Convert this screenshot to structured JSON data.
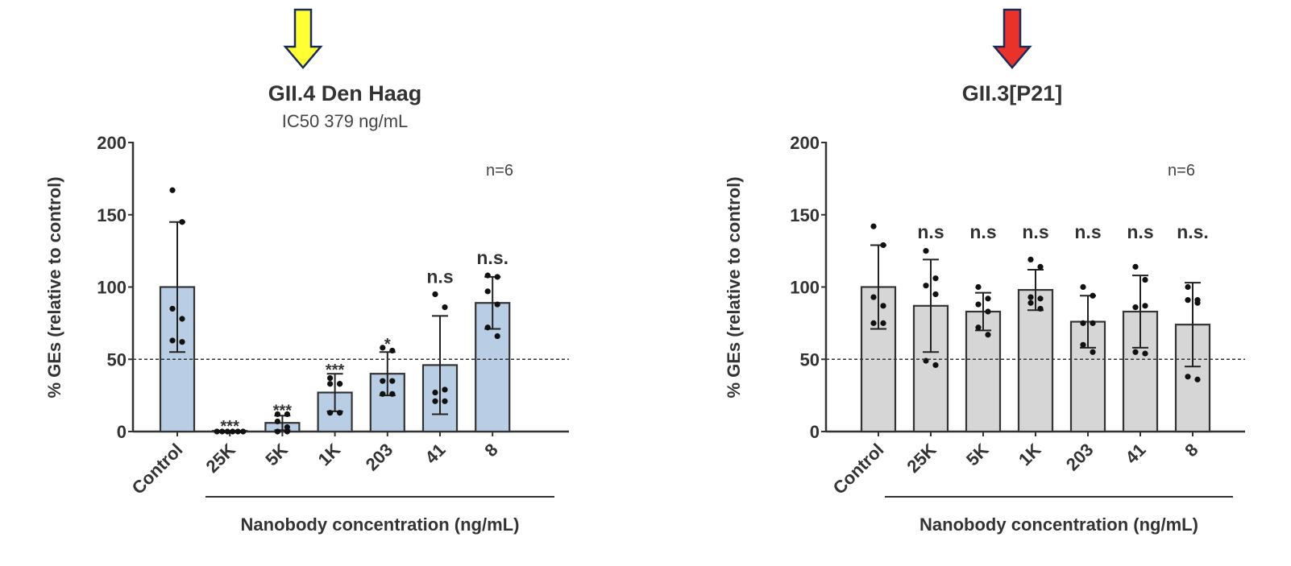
{
  "chart_data": [
    {
      "type": "bar",
      "title": "GII.4 Den Haag",
      "subtitle": "IC50  379 ng/mL",
      "arrow_color": "#ffff33",
      "bar_color": "#b9cde4",
      "ylabel": "% GEs (relative to control)",
      "xlabel": "Nanobody concentration (ng/mL)",
      "ylim": [
        0,
        200
      ],
      "yticks": [
        "0",
        "50",
        "100",
        "150",
        "200"
      ],
      "reference_line": 50,
      "annotation": "n=6",
      "categories": [
        "Control",
        "25K",
        "5K",
        "1K",
        "203",
        "41",
        "8"
      ],
      "values": [
        100,
        0.5,
        6,
        27,
        40,
        46,
        89
      ],
      "sd": [
        45,
        0.5,
        5,
        13,
        15,
        34,
        18
      ],
      "significance": [
        "",
        "***",
        "***",
        "***",
        "*",
        "n.s",
        "n.s."
      ],
      "points": [
        [
          167,
          145,
          85,
          78,
          63,
          62
        ],
        [
          0,
          0,
          0,
          0,
          0,
          0
        ],
        [
          12,
          12,
          7,
          3,
          0,
          0
        ],
        [
          37,
          33,
          33,
          33,
          13,
          13
        ],
        [
          58,
          56,
          35,
          35,
          26,
          26
        ],
        [
          95,
          86,
          27,
          29,
          21,
          21
        ],
        [
          108,
          107,
          97,
          88,
          72,
          66
        ]
      ]
    },
    {
      "type": "bar",
      "title": "GII.3[P21]",
      "arrow_color": "#e8322a",
      "bar_color": "#d6d6d6",
      "ylabel": "% GEs (relative to control)",
      "xlabel": "Nanobody concentration (ng/mL)",
      "ylim": [
        0,
        200
      ],
      "yticks": [
        "0",
        "50",
        "100",
        "150",
        "200"
      ],
      "reference_line": 50,
      "annotation": "n=6",
      "categories": [
        "Control",
        "25K",
        "5K",
        "1K",
        "203",
        "41",
        "8"
      ],
      "values": [
        100,
        87,
        83,
        98,
        76,
        83,
        74
      ],
      "sd": [
        29,
        32,
        13,
        14,
        18,
        25,
        29
      ],
      "significance": [
        "",
        "n.s",
        "n.s",
        "n.s",
        "n.s",
        "n.s",
        "n.s."
      ],
      "points": [
        [
          142,
          129,
          93,
          87,
          75,
          75
        ],
        [
          125,
          106,
          101,
          95,
          49,
          46
        ],
        [
          100,
          92,
          88,
          83,
          72,
          67
        ],
        [
          119,
          114,
          93,
          92,
          89,
          85
        ],
        [
          100,
          94,
          75,
          75,
          60,
          55
        ],
        [
          114,
          105,
          86,
          87,
          55,
          54
        ],
        [
          100,
          91,
          91,
          89,
          38,
          36
        ]
      ]
    }
  ]
}
